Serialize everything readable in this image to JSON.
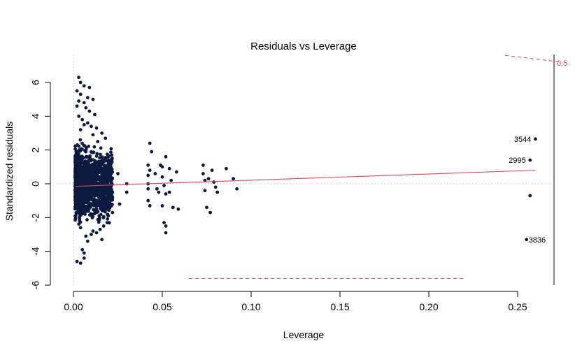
{
  "chart_data": {
    "type": "scatter",
    "title": "Residuals vs Leverage",
    "xlabel": "Leverage",
    "ylabel": "Standardized residuals",
    "xlim": [
      0,
      0.26
    ],
    "ylim": [
      -6,
      6.5
    ],
    "x_ticks": [
      "0.00",
      "0.05",
      "0.10",
      "0.15",
      "0.20",
      "0.25"
    ],
    "x_tick_values": [
      0,
      0.05,
      0.1,
      0.15,
      0.2,
      0.25
    ],
    "y_ticks": [
      "-6",
      "-4",
      "-2",
      "0",
      "2",
      "4",
      "6"
    ],
    "y_tick_values": [
      -6,
      -4,
      -2,
      0,
      2,
      4,
      6
    ],
    "point_color": "#0d1a3f",
    "smooth_color": "#e0435f",
    "cooks_color": "#e0435f",
    "reference_line_color": "#bbbbbb",
    "cluster": {
      "x_range": [
        0.001,
        0.022
      ],
      "y_range": [
        -2.4,
        2.6
      ],
      "count": 1400
    },
    "points": [
      [
        0.003,
        6.3
      ],
      [
        0.004,
        6.0
      ],
      [
        0.006,
        5.8
      ],
      [
        0.009,
        5.7
      ],
      [
        0.002,
        5.5
      ],
      [
        0.004,
        5.3
      ],
      [
        0.008,
        5.1
      ],
      [
        0.011,
        5.0
      ],
      [
        0.003,
        4.9
      ],
      [
        0.006,
        4.8
      ],
      [
        0.002,
        4.6
      ],
      [
        0.007,
        4.5
      ],
      [
        0.009,
        4.3
      ],
      [
        0.012,
        4.1
      ],
      [
        0.003,
        4.0
      ],
      [
        0.005,
        3.8
      ],
      [
        0.008,
        3.6
      ],
      [
        0.01,
        3.4
      ],
      [
        0.013,
        3.3
      ],
      [
        0.016,
        3.0
      ],
      [
        0.018,
        2.7
      ],
      [
        0.004,
        3.2
      ],
      [
        0.006,
        3.5
      ],
      [
        0.011,
        2.9
      ],
      [
        0.002,
        -4.6
      ],
      [
        0.004,
        -4.7
      ],
      [
        0.006,
        -4.4
      ],
      [
        0.006,
        -4.1
      ],
      [
        0.005,
        -3.9
      ],
      [
        0.008,
        -3.4
      ],
      [
        0.01,
        -3.0
      ],
      [
        0.013,
        -2.9
      ],
      [
        0.015,
        -2.7
      ],
      [
        0.017,
        -2.5
      ],
      [
        0.019,
        -2.3
      ],
      [
        0.016,
        -3.3
      ],
      [
        0.004,
        -2.6
      ],
      [
        0.007,
        -3.1
      ],
      [
        0.011,
        -2.8
      ],
      [
        0.019,
        -0.8
      ],
      [
        0.02,
        -1.2
      ],
      [
        0.021,
        0.4
      ],
      [
        0.022,
        -0.5
      ],
      [
        0.025,
        0.6
      ],
      [
        0.026,
        -1.2
      ],
      [
        0.03,
        0.0
      ],
      [
        0.03,
        -0.5
      ],
      [
        0.021,
        1.2
      ],
      [
        0.022,
        -1.7
      ],
      [
        0.042,
        1.1
      ],
      [
        0.043,
        2.4
      ],
      [
        0.044,
        1.9
      ],
      [
        0.043,
        0.8
      ],
      [
        0.042,
        0.5
      ],
      [
        0.042,
        0.0
      ],
      [
        0.042,
        -0.3
      ],
      [
        0.042,
        -1.0
      ],
      [
        0.043,
        -1.3
      ],
      [
        0.046,
        0.6
      ],
      [
        0.047,
        -0.3
      ],
      [
        0.048,
        -0.5
      ],
      [
        0.049,
        1.1
      ],
      [
        0.05,
        0.4
      ],
      [
        0.05,
        1.0
      ],
      [
        0.051,
        -0.1
      ],
      [
        0.052,
        1.6
      ],
      [
        0.051,
        -2.3
      ],
      [
        0.052,
        -2.9
      ],
      [
        0.052,
        -2.5
      ],
      [
        0.052,
        -0.6
      ],
      [
        0.05,
        -1.3
      ],
      [
        0.054,
        0.9
      ],
      [
        0.055,
        0.2
      ],
      [
        0.056,
        -1.4
      ],
      [
        0.054,
        -0.5
      ],
      [
        0.058,
        0.7
      ],
      [
        0.059,
        -1.5
      ],
      [
        0.073,
        1.1
      ],
      [
        0.073,
        0.6
      ],
      [
        0.074,
        0.2
      ],
      [
        0.074,
        -0.4
      ],
      [
        0.075,
        -1.4
      ],
      [
        0.076,
        0.3
      ],
      [
        0.077,
        -1.7
      ],
      [
        0.078,
        0.8
      ],
      [
        0.079,
        0.1
      ],
      [
        0.08,
        -0.2
      ],
      [
        0.081,
        -0.5
      ],
      [
        0.086,
        0.9
      ],
      [
        0.09,
        0.3
      ],
      [
        0.092,
        -0.3
      ],
      [
        0.257,
        -0.7
      ]
    ],
    "labeled_points": [
      {
        "label": "3544",
        "x": 0.26,
        "y": 2.65
      },
      {
        "label": "2995",
        "x": 0.257,
        "y": 1.4
      },
      {
        "label": "3836",
        "x": 0.255,
        "y": -3.3
      }
    ],
    "smooth_line": [
      [
        0.001,
        -0.15
      ],
      [
        0.26,
        0.8
      ]
    ],
    "cooks_distance": {
      "label": "0.5",
      "upper_segment": [
        [
          0.243,
          7.6
        ],
        [
          0.275,
          7.2
        ]
      ],
      "lower_segment": [
        [
          0.065,
          -5.6
        ],
        [
          0.22,
          -5.6
        ]
      ]
    }
  }
}
